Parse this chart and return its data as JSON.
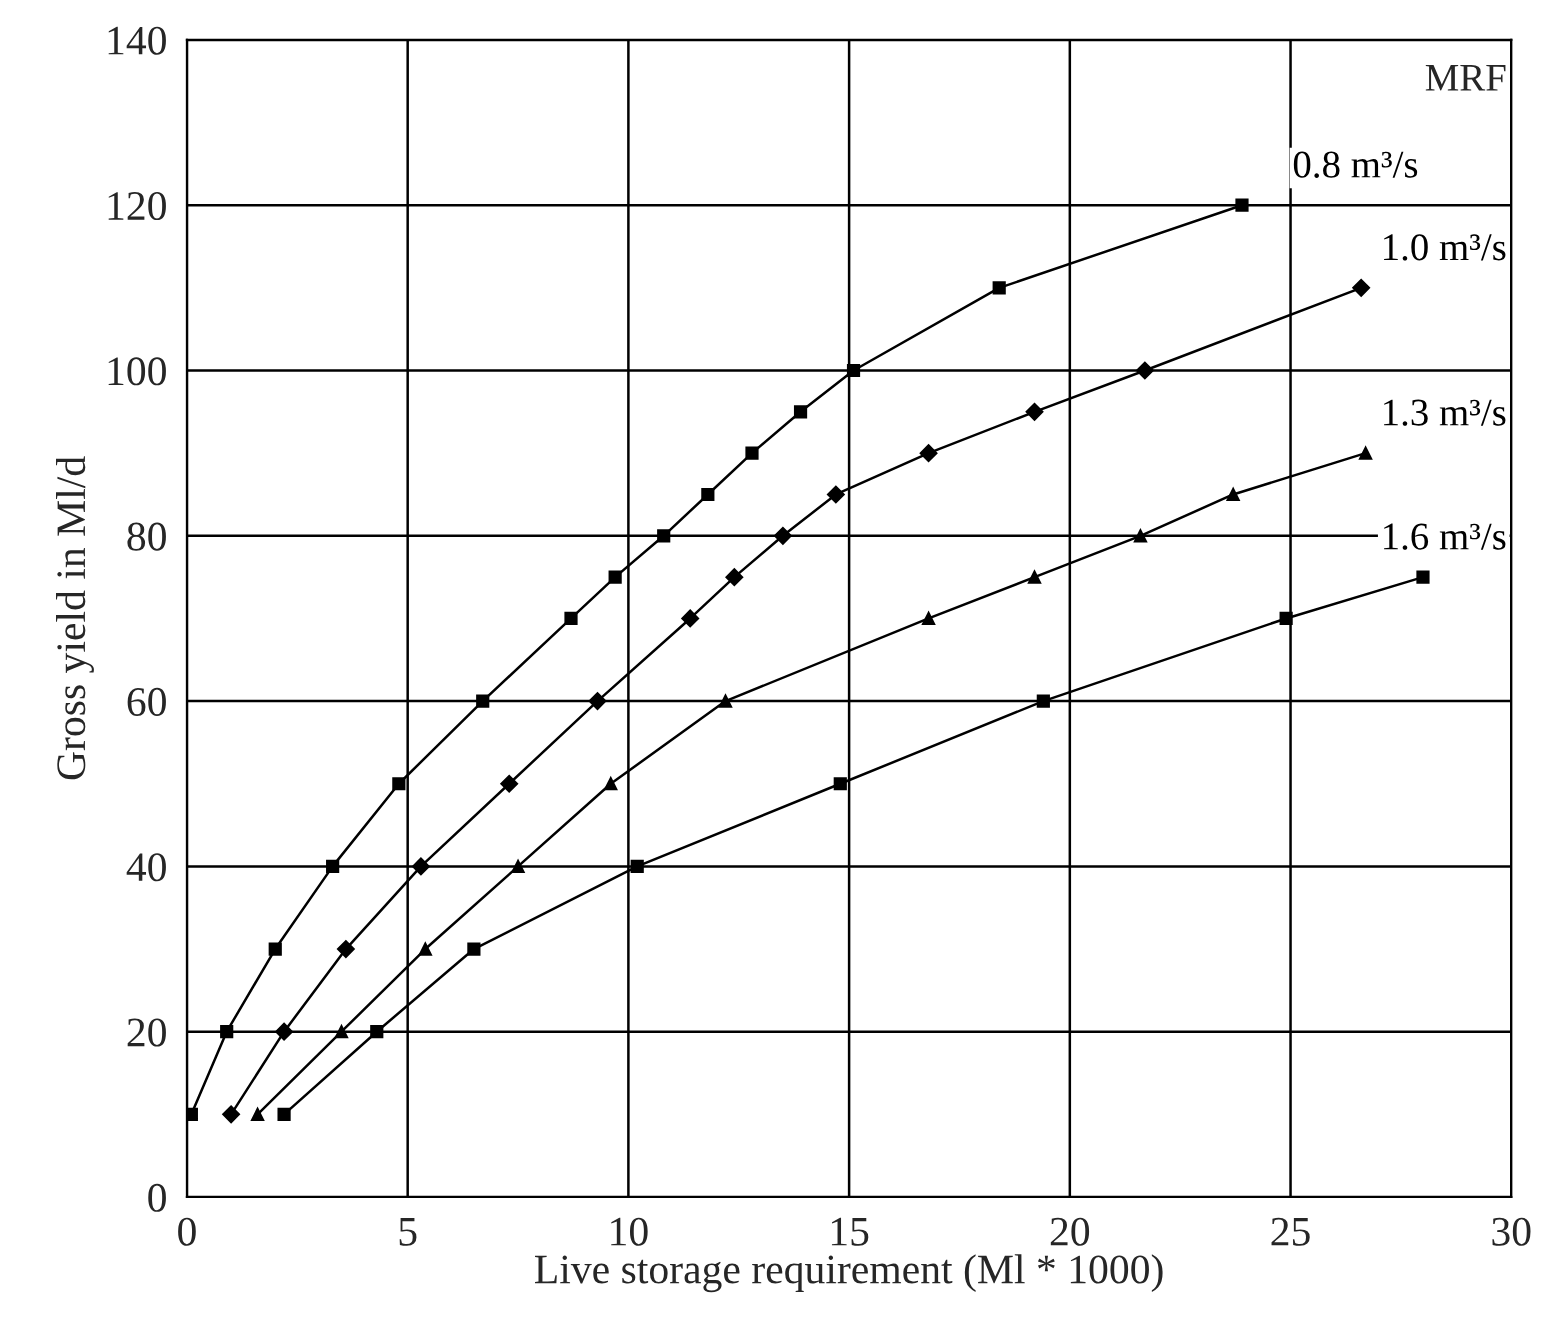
{
  "chart_data": {
    "type": "line",
    "xlabel": "Live storage requirement (Ml * 1000)",
    "ylabel": "Gross yield in Ml/d",
    "legend_title": "MRF",
    "xlim": [
      0,
      30
    ],
    "xticks": [
      0,
      5,
      10,
      15,
      20,
      25,
      30
    ],
    "ylim": [
      0,
      140
    ],
    "yticks": [
      0,
      20,
      40,
      60,
      80,
      100,
      120,
      140
    ],
    "grid": true,
    "legend": false,
    "series": [
      {
        "name": "0.8 m³/s",
        "color": "#000000",
        "marker": "square",
        "x": [
          0.1,
          0.9,
          2.0,
          3.3,
          4.8,
          6.7,
          8.7,
          9.7,
          10.8,
          11.8,
          12.8,
          13.9,
          15.1,
          18.4,
          23.9
        ],
        "values": [
          10,
          20,
          30,
          40,
          50,
          60,
          70,
          75,
          80,
          85,
          90,
          95,
          100,
          110,
          120
        ]
      },
      {
        "name": "1.0 m³/s",
        "color": "#000000",
        "marker": "diamond",
        "x": [
          1.0,
          2.2,
          3.6,
          5.3,
          7.3,
          9.3,
          11.4,
          12.4,
          13.5,
          14.7,
          16.8,
          19.2,
          21.7,
          26.6
        ],
        "values": [
          10,
          20,
          30,
          40,
          50,
          60,
          70,
          75,
          80,
          85,
          90,
          95,
          100,
          110
        ]
      },
      {
        "name": "1.3 m³/s",
        "color": "#000000",
        "marker": "triangle",
        "x": [
          1.6,
          3.5,
          5.4,
          7.5,
          9.6,
          12.2,
          16.8,
          19.2,
          21.6,
          23.7,
          26.7
        ],
        "values": [
          10,
          20,
          30,
          40,
          50,
          60,
          70,
          75,
          80,
          85,
          90
        ]
      },
      {
        "name": "1.6 m³/s",
        "color": "#000000",
        "marker": "square",
        "x": [
          2.2,
          4.3,
          6.5,
          10.2,
          14.8,
          19.4,
          24.9,
          28.0
        ],
        "values": [
          10,
          20,
          30,
          40,
          50,
          60,
          70,
          75
        ]
      }
    ]
  }
}
